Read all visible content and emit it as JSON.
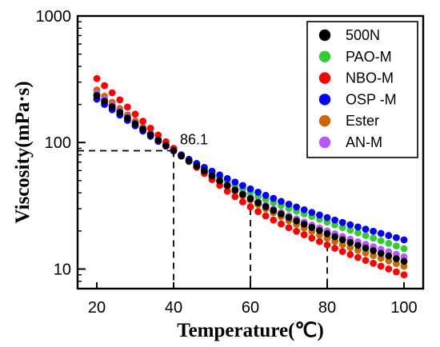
{
  "chart_data": {
    "type": "scatter",
    "xlabel": "Temperature(℃)",
    "ylabel": "Viscosity(mPa·s)",
    "xlim": [
      15,
      105
    ],
    "ylim": [
      7,
      1000
    ],
    "yscale": "log",
    "grid": false,
    "legend_position": "top-right",
    "xticks": [
      {
        "value": 20,
        "label": "20"
      },
      {
        "value": 40,
        "label": "40"
      },
      {
        "value": 60,
        "label": "60"
      },
      {
        "value": 80,
        "label": "80"
      },
      {
        "value": 100,
        "label": "100"
      }
    ],
    "yticks": [
      {
        "value": 10,
        "label": "10"
      },
      {
        "value": 100,
        "label": "100"
      },
      {
        "value": 1000,
        "label": "1000"
      }
    ],
    "annotation": {
      "text": "86.1",
      "x": 40,
      "y": 86.1
    },
    "reference_lines": [
      {
        "x": 40,
        "y": 86.1
      },
      {
        "x": 60,
        "y": 30
      },
      {
        "x": 80,
        "y": 19
      }
    ],
    "x": [
      20,
      40,
      60,
      80,
      100
    ],
    "series": [
      {
        "name": "500N",
        "color": "#000000",
        "values": [
          235,
          86.1,
          36,
          19,
          11.5
        ]
      },
      {
        "name": "PAO-M",
        "color": "#33cc33",
        "values": [
          225,
          86.1,
          40,
          23.5,
          14.5
        ]
      },
      {
        "name": "NBO-M",
        "color": "#ff0000",
        "values": [
          320,
          90,
          31,
          15.5,
          9
        ]
      },
      {
        "name": "OSP -M",
        "color": "#0000ff",
        "values": [
          220,
          86.1,
          43,
          25.5,
          17
        ]
      },
      {
        "name": "Ester",
        "color": "#cc6600",
        "values": [
          260,
          86.1,
          35,
          17.5,
          10.5
        ]
      },
      {
        "name": "AN-M",
        "color": "#b259ff",
        "values": [
          245,
          86.1,
          36.5,
          20,
          12.5
        ]
      }
    ]
  }
}
